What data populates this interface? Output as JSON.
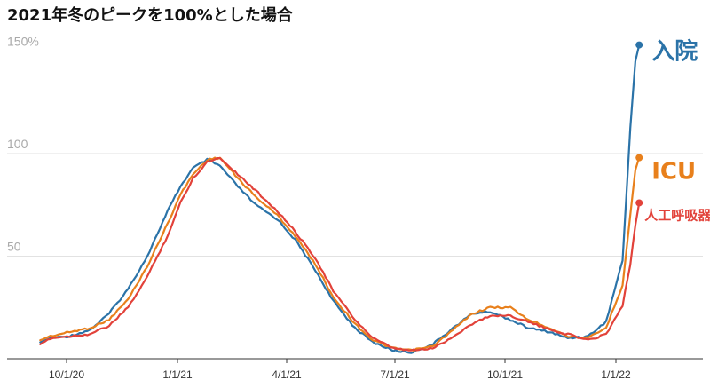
{
  "chart_data": {
    "type": "line",
    "title": "2021年冬のピークを100%とした場合",
    "xlabel": "",
    "ylabel": "",
    "ylim": [
      0,
      160
    ],
    "x_ticks": [
      "10/1/20",
      "1/1/21",
      "4/1/21",
      "7/1/21",
      "10/1/21",
      "1/1/22"
    ],
    "y_ticks": [
      {
        "value": 150,
        "label": "150%"
      },
      {
        "value": 100,
        "label": "100"
      },
      {
        "value": 50,
        "label": "50"
      }
    ],
    "grid": true,
    "legend": "labels at series ends",
    "series": [
      {
        "name": "入院",
        "color": "#2b73a8",
        "x": [
          "2020-09-27",
          "2020-10-05",
          "2020-10-20",
          "2020-11-05",
          "2020-11-20",
          "2020-12-05",
          "2020-12-20",
          "2021-01-05",
          "2021-01-15",
          "2021-01-25",
          "2021-02-05",
          "2021-02-15",
          "2021-03-01",
          "2021-03-15",
          "2021-04-01",
          "2021-04-15",
          "2021-05-01",
          "2021-05-15",
          "2021-06-01",
          "2021-06-15",
          "2021-07-01",
          "2021-07-15",
          "2021-08-01",
          "2021-08-15",
          "2021-09-01",
          "2021-09-15",
          "2021-10-01",
          "2021-10-15",
          "2021-11-01",
          "2021-11-15",
          "2021-12-01",
          "2021-12-15",
          "2021-12-28",
          "2022-01-03",
          "2022-01-07",
          "2022-01-10"
        ],
        "values": [
          8,
          10,
          11,
          14,
          22,
          34,
          50,
          72,
          84,
          93,
          97,
          94,
          84,
          75,
          68,
          58,
          43,
          28,
          15,
          8,
          4,
          3,
          7,
          14,
          22,
          23,
          19,
          15,
          13,
          10,
          11,
          18,
          48,
          112,
          145,
          153
        ]
      },
      {
        "name": "ICU",
        "color": "#e8801c",
        "x": [
          "2020-09-27",
          "2020-10-05",
          "2020-10-20",
          "2020-11-05",
          "2020-11-20",
          "2020-12-05",
          "2020-12-20",
          "2021-01-05",
          "2021-01-15",
          "2021-01-25",
          "2021-02-05",
          "2021-02-15",
          "2021-03-01",
          "2021-03-15",
          "2021-04-01",
          "2021-04-15",
          "2021-05-01",
          "2021-05-15",
          "2021-06-01",
          "2021-06-15",
          "2021-07-01",
          "2021-07-15",
          "2021-08-01",
          "2021-08-15",
          "2021-09-01",
          "2021-09-15",
          "2021-10-01",
          "2021-10-15",
          "2021-11-01",
          "2021-11-15",
          "2021-12-01",
          "2021-12-15",
          "2021-12-28",
          "2022-01-03",
          "2022-01-07",
          "2022-01-10"
        ],
        "values": [
          9,
          11,
          13,
          15,
          19,
          29,
          45,
          66,
          80,
          90,
          97,
          98,
          88,
          79,
          70,
          60,
          46,
          30,
          17,
          9,
          5,
          4,
          6,
          13,
          22,
          25,
          25,
          19,
          15,
          11,
          10,
          15,
          36,
          70,
          92,
          98
        ]
      },
      {
        "name": "人工呼吸器",
        "color": "#e2423a",
        "x": [
          "2020-09-27",
          "2020-10-05",
          "2020-10-20",
          "2020-11-05",
          "2020-11-20",
          "2020-12-05",
          "2020-12-20",
          "2021-01-05",
          "2021-01-15",
          "2021-01-25",
          "2021-02-05",
          "2021-02-15",
          "2021-03-01",
          "2021-03-15",
          "2021-04-01",
          "2021-04-15",
          "2021-05-01",
          "2021-05-15",
          "2021-06-01",
          "2021-06-15",
          "2021-07-01",
          "2021-07-15",
          "2021-08-01",
          "2021-08-15",
          "2021-09-01",
          "2021-09-15",
          "2021-10-01",
          "2021-10-15",
          "2021-11-01",
          "2021-11-15",
          "2021-12-01",
          "2021-12-15",
          "2021-12-28",
          "2022-01-03",
          "2022-01-07",
          "2022-01-10"
        ],
        "values": [
          7,
          10,
          11,
          12,
          16,
          25,
          40,
          60,
          76,
          88,
          96,
          98,
          90,
          82,
          72,
          62,
          49,
          33,
          19,
          10,
          5,
          4,
          5,
          10,
          17,
          21,
          21,
          18,
          14,
          12,
          9,
          12,
          26,
          46,
          65,
          76
        ]
      }
    ]
  }
}
